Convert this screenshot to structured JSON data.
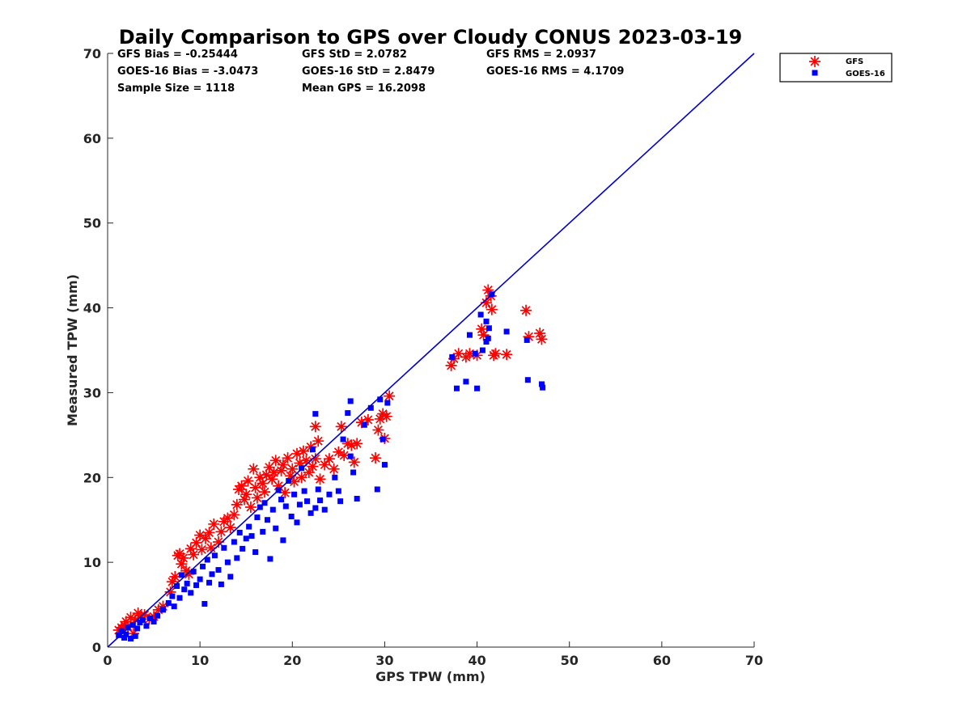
{
  "chart_data": {
    "type": "scatter",
    "title": "Daily Comparison to GPS over Cloudy CONUS 2023-03-19",
    "xlabel": "GPS TPW (mm)",
    "ylabel": "Measured TPW (mm)",
    "xlim": [
      0,
      70
    ],
    "ylim": [
      0,
      70
    ],
    "xticks": [
      "0",
      "10",
      "20",
      "30",
      "40",
      "50",
      "60",
      "70"
    ],
    "yticks": [
      "0",
      "10",
      "20",
      "30",
      "40",
      "50",
      "60",
      "70"
    ],
    "grid": false,
    "legend_position": "outside-top-right",
    "stats": [
      [
        "GFS Bias = -0.25444",
        "GFS StD = 2.0782",
        "GFS RMS = 2.0937"
      ],
      [
        "GOES-16 Bias = -3.0473",
        "GOES-16 StD = 2.8479",
        "GOES-16 RMS = 4.1709"
      ],
      [
        "Sample Size = 1118",
        "Mean GPS = 16.2098",
        ""
      ]
    ],
    "reference_line": {
      "x": [
        0,
        70
      ],
      "y": [
        0,
        70
      ],
      "color": "#0000cc"
    },
    "series": [
      {
        "name": "GFS",
        "marker": "asterisk",
        "color": "#ff0000",
        "points": [
          [
            1.2,
            2.0
          ],
          [
            1.5,
            2.3
          ],
          [
            1.8,
            2.6
          ],
          [
            2.0,
            3.0
          ],
          [
            2.2,
            2.4
          ],
          [
            2.5,
            3.5
          ],
          [
            2.8,
            1.6
          ],
          [
            3.0,
            3.2
          ],
          [
            3.3,
            4.0
          ],
          [
            3.6,
            3.7
          ],
          [
            4.0,
            3.8
          ],
          [
            4.5,
            3.3
          ],
          [
            5.0,
            3.6
          ],
          [
            5.5,
            4.4
          ],
          [
            6.0,
            4.8
          ],
          [
            6.8,
            6.5
          ],
          [
            7.0,
            7.7
          ],
          [
            7.3,
            8.3
          ],
          [
            7.6,
            10.8
          ],
          [
            7.8,
            11.0
          ],
          [
            8.0,
            9.8
          ],
          [
            8.2,
            10.5
          ],
          [
            8.5,
            9.0
          ],
          [
            8.8,
            8.6
          ],
          [
            9.0,
            11.6
          ],
          [
            9.3,
            10.9
          ],
          [
            9.6,
            12.3
          ],
          [
            10.0,
            13.2
          ],
          [
            10.2,
            11.5
          ],
          [
            10.6,
            12.8
          ],
          [
            11.0,
            13.5
          ],
          [
            11.2,
            11.7
          ],
          [
            11.5,
            14.5
          ],
          [
            12.0,
            12.4
          ],
          [
            12.3,
            13.6
          ],
          [
            12.6,
            14.8
          ],
          [
            13.0,
            15.2
          ],
          [
            13.3,
            14.1
          ],
          [
            13.7,
            15.6
          ],
          [
            14.0,
            16.8
          ],
          [
            14.2,
            18.6
          ],
          [
            14.5,
            19.0
          ],
          [
            14.8,
            17.4
          ],
          [
            15.0,
            18.0
          ],
          [
            15.2,
            19.6
          ],
          [
            15.5,
            16.5
          ],
          [
            15.8,
            21.0
          ],
          [
            16.0,
            18.8
          ],
          [
            16.2,
            17.6
          ],
          [
            16.5,
            20.0
          ],
          [
            16.8,
            19.3
          ],
          [
            17.0,
            18.3
          ],
          [
            17.2,
            20.3
          ],
          [
            17.5,
            21.2
          ],
          [
            17.8,
            19.8
          ],
          [
            18.0,
            20.6
          ],
          [
            18.2,
            22.0
          ],
          [
            18.5,
            19.0
          ],
          [
            18.8,
            20.8
          ],
          [
            19.0,
            21.5
          ],
          [
            19.2,
            18.2
          ],
          [
            19.5,
            22.3
          ],
          [
            19.8,
            20.2
          ],
          [
            20.0,
            21.0
          ],
          [
            20.2,
            19.5
          ],
          [
            20.5,
            22.8
          ],
          [
            20.8,
            21.7
          ],
          [
            21.0,
            20.0
          ],
          [
            21.2,
            23.1
          ],
          [
            21.5,
            22.0
          ],
          [
            21.8,
            20.6
          ],
          [
            22.0,
            23.6
          ],
          [
            22.2,
            21.3
          ],
          [
            22.5,
            22.2
          ],
          [
            22.8,
            24.3
          ],
          [
            23.0,
            19.8
          ],
          [
            23.5,
            21.5
          ],
          [
            24.0,
            22.2
          ],
          [
            24.5,
            21.0
          ],
          [
            25.0,
            23.0
          ],
          [
            25.3,
            26.0
          ],
          [
            25.6,
            22.6
          ],
          [
            26.0,
            24.0
          ],
          [
            26.4,
            23.8
          ],
          [
            26.7,
            21.8
          ],
          [
            27.0,
            24.0
          ],
          [
            27.5,
            26.5
          ],
          [
            28.2,
            26.8
          ],
          [
            29.0,
            22.3
          ],
          [
            29.3,
            25.6
          ],
          [
            29.5,
            26.9
          ],
          [
            29.8,
            27.5
          ],
          [
            30.0,
            24.6
          ],
          [
            30.2,
            27.2
          ],
          [
            30.5,
            29.6
          ],
          [
            22.5,
            26.0
          ],
          [
            37.2,
            33.2
          ],
          [
            37.5,
            34.0
          ],
          [
            38.0,
            34.6
          ],
          [
            38.8,
            34.2
          ],
          [
            39.2,
            34.6
          ],
          [
            40.0,
            34.4
          ],
          [
            40.5,
            37.5
          ],
          [
            40.7,
            36.8
          ],
          [
            41.0,
            40.6
          ],
          [
            41.2,
            42.1
          ],
          [
            41.5,
            41.4
          ],
          [
            41.6,
            39.8
          ],
          [
            41.8,
            34.4
          ],
          [
            42.0,
            34.6
          ],
          [
            43.2,
            34.5
          ],
          [
            45.3,
            39.7
          ],
          [
            45.6,
            36.6
          ],
          [
            46.8,
            37.0
          ],
          [
            47.0,
            36.3
          ]
        ]
      },
      {
        "name": "GOES-16",
        "marker": "square",
        "color": "#0000ff",
        "points": [
          [
            1.2,
            1.4
          ],
          [
            1.5,
            1.9
          ],
          [
            1.8,
            1.1
          ],
          [
            2.0,
            1.5
          ],
          [
            2.2,
            2.3
          ],
          [
            2.5,
            1.0
          ],
          [
            2.7,
            2.6
          ],
          [
            3.0,
            1.3
          ],
          [
            3.2,
            2.2
          ],
          [
            3.5,
            2.9
          ],
          [
            3.8,
            3.2
          ],
          [
            4.2,
            2.5
          ],
          [
            4.6,
            3.4
          ],
          [
            5.0,
            3.0
          ],
          [
            5.4,
            3.7
          ],
          [
            6.0,
            4.4
          ],
          [
            6.6,
            5.2
          ],
          [
            7.0,
            6.0
          ],
          [
            7.2,
            4.8
          ],
          [
            7.5,
            7.2
          ],
          [
            7.8,
            5.8
          ],
          [
            8.0,
            8.5
          ],
          [
            8.3,
            6.8
          ],
          [
            8.6,
            7.5
          ],
          [
            9.0,
            6.4
          ],
          [
            9.3,
            8.9
          ],
          [
            9.6,
            7.3
          ],
          [
            10.0,
            8.0
          ],
          [
            10.3,
            9.5
          ],
          [
            10.5,
            5.1
          ],
          [
            10.8,
            10.3
          ],
          [
            11.0,
            7.6
          ],
          [
            11.3,
            8.6
          ],
          [
            11.6,
            10.8
          ],
          [
            12.0,
            9.1
          ],
          [
            12.3,
            7.4
          ],
          [
            12.6,
            11.7
          ],
          [
            13.0,
            10.0
          ],
          [
            13.3,
            8.3
          ],
          [
            13.7,
            12.4
          ],
          [
            14.0,
            10.5
          ],
          [
            14.3,
            13.5
          ],
          [
            14.6,
            11.6
          ],
          [
            15.0,
            12.8
          ],
          [
            15.3,
            14.2
          ],
          [
            15.6,
            13.1
          ],
          [
            16.0,
            11.2
          ],
          [
            16.2,
            15.3
          ],
          [
            16.5,
            16.5
          ],
          [
            16.8,
            13.6
          ],
          [
            17.0,
            17.0
          ],
          [
            17.3,
            15.0
          ],
          [
            17.6,
            10.4
          ],
          [
            17.9,
            16.2
          ],
          [
            18.2,
            14.0
          ],
          [
            18.5,
            18.5
          ],
          [
            18.8,
            17.4
          ],
          [
            19.0,
            12.6
          ],
          [
            19.3,
            16.6
          ],
          [
            19.6,
            19.6
          ],
          [
            19.9,
            15.4
          ],
          [
            20.2,
            18.0
          ],
          [
            20.5,
            14.7
          ],
          [
            20.8,
            16.8
          ],
          [
            21.0,
            21.1
          ],
          [
            21.3,
            18.4
          ],
          [
            21.6,
            17.2
          ],
          [
            22.0,
            15.8
          ],
          [
            22.2,
            23.3
          ],
          [
            22.5,
            16.4
          ],
          [
            22.8,
            18.6
          ],
          [
            23.0,
            17.3
          ],
          [
            23.5,
            16.2
          ],
          [
            24.0,
            18.0
          ],
          [
            24.6,
            20.0
          ],
          [
            25.0,
            18.4
          ],
          [
            25.2,
            17.2
          ],
          [
            25.5,
            24.5
          ],
          [
            26.0,
            27.6
          ],
          [
            26.3,
            22.5
          ],
          [
            26.6,
            20.6
          ],
          [
            27.0,
            17.5
          ],
          [
            27.8,
            26.2
          ],
          [
            28.5,
            28.2
          ],
          [
            29.2,
            18.6
          ],
          [
            29.5,
            29.2
          ],
          [
            29.8,
            24.5
          ],
          [
            30.0,
            21.5
          ],
          [
            30.3,
            28.8
          ],
          [
            22.5,
            27.5
          ],
          [
            26.3,
            29.0
          ],
          [
            37.3,
            34.2
          ],
          [
            37.8,
            30.5
          ],
          [
            38.8,
            31.3
          ],
          [
            39.2,
            36.8
          ],
          [
            39.8,
            34.6
          ],
          [
            40.0,
            30.5
          ],
          [
            40.4,
            39.2
          ],
          [
            40.6,
            35.0
          ],
          [
            41.0,
            36.0
          ],
          [
            41.0,
            38.4
          ],
          [
            41.2,
            36.4
          ],
          [
            41.3,
            37.6
          ],
          [
            41.6,
            41.6
          ],
          [
            43.2,
            37.2
          ],
          [
            45.4,
            36.2
          ],
          [
            45.5,
            31.5
          ],
          [
            47.0,
            31.0
          ],
          [
            47.1,
            30.6
          ]
        ]
      }
    ]
  }
}
